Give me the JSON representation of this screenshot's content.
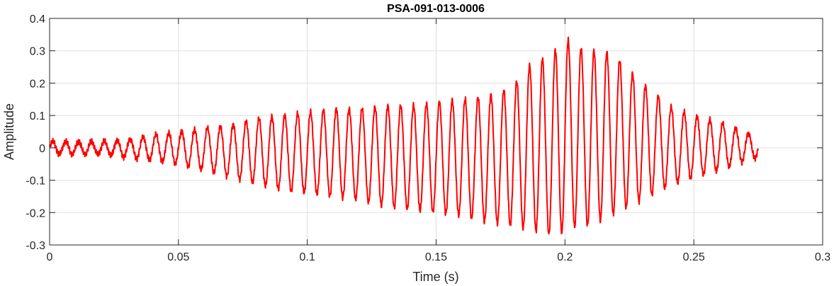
{
  "chart_data": {
    "type": "line",
    "title": "PSA-091-013-0006",
    "xlabel": "Time (s)",
    "ylabel": "Amplitude",
    "xlim": [
      0,
      0.3
    ],
    "ylim": [
      -0.3,
      0.4
    ],
    "x_ticks": [
      0,
      0.05,
      0.1,
      0.15,
      0.2,
      0.25,
      0.3
    ],
    "x_tick_labels": [
      "0",
      "0.05",
      "0.1",
      "0.15",
      "0.2",
      "0.25",
      "0.3"
    ],
    "y_ticks": [
      -0.3,
      -0.2,
      -0.1,
      0,
      0.1,
      0.2,
      0.3,
      0.4
    ],
    "y_tick_labels": [
      "-0.3",
      "-0.2",
      "-0.1",
      "0",
      "0.1",
      "0.2",
      "0.3",
      "0.4"
    ],
    "grid": true,
    "line_color": "#ff0000",
    "series": [
      {
        "x_range": [
          0,
          0.275
        ],
        "oscillation_frequency_hz": 200,
        "envelope": {
          "t": [
            0,
            0.01,
            0.02,
            0.03,
            0.04,
            0.05,
            0.06,
            0.07,
            0.08,
            0.09,
            0.1,
            0.11,
            0.12,
            0.13,
            0.14,
            0.15,
            0.16,
            0.17,
            0.18,
            0.185,
            0.19,
            0.195,
            0.2,
            0.205,
            0.21,
            0.215,
            0.22,
            0.225,
            0.23,
            0.235,
            0.24,
            0.25,
            0.26,
            0.27,
            0.275
          ],
          "upper": [
            0.02,
            0.02,
            0.02,
            0.025,
            0.04,
            0.05,
            0.06,
            0.07,
            0.09,
            0.1,
            0.11,
            0.12,
            0.12,
            0.13,
            0.13,
            0.14,
            0.15,
            0.16,
            0.19,
            0.25,
            0.27,
            0.29,
            0.34,
            0.31,
            0.3,
            0.3,
            0.28,
            0.24,
            0.2,
            0.17,
            0.13,
            0.1,
            0.08,
            0.05,
            0.03
          ],
          "lower": [
            -0.02,
            -0.02,
            -0.02,
            -0.03,
            -0.04,
            -0.05,
            -0.07,
            -0.09,
            -0.11,
            -0.13,
            -0.14,
            -0.15,
            -0.16,
            -0.18,
            -0.19,
            -0.2,
            -0.21,
            -0.23,
            -0.24,
            -0.25,
            -0.26,
            -0.27,
            -0.26,
            -0.24,
            -0.24,
            -0.22,
            -0.2,
            -0.18,
            -0.16,
            -0.14,
            -0.12,
            -0.09,
            -0.07,
            -0.04,
            -0.03
          ]
        }
      }
    ]
  }
}
